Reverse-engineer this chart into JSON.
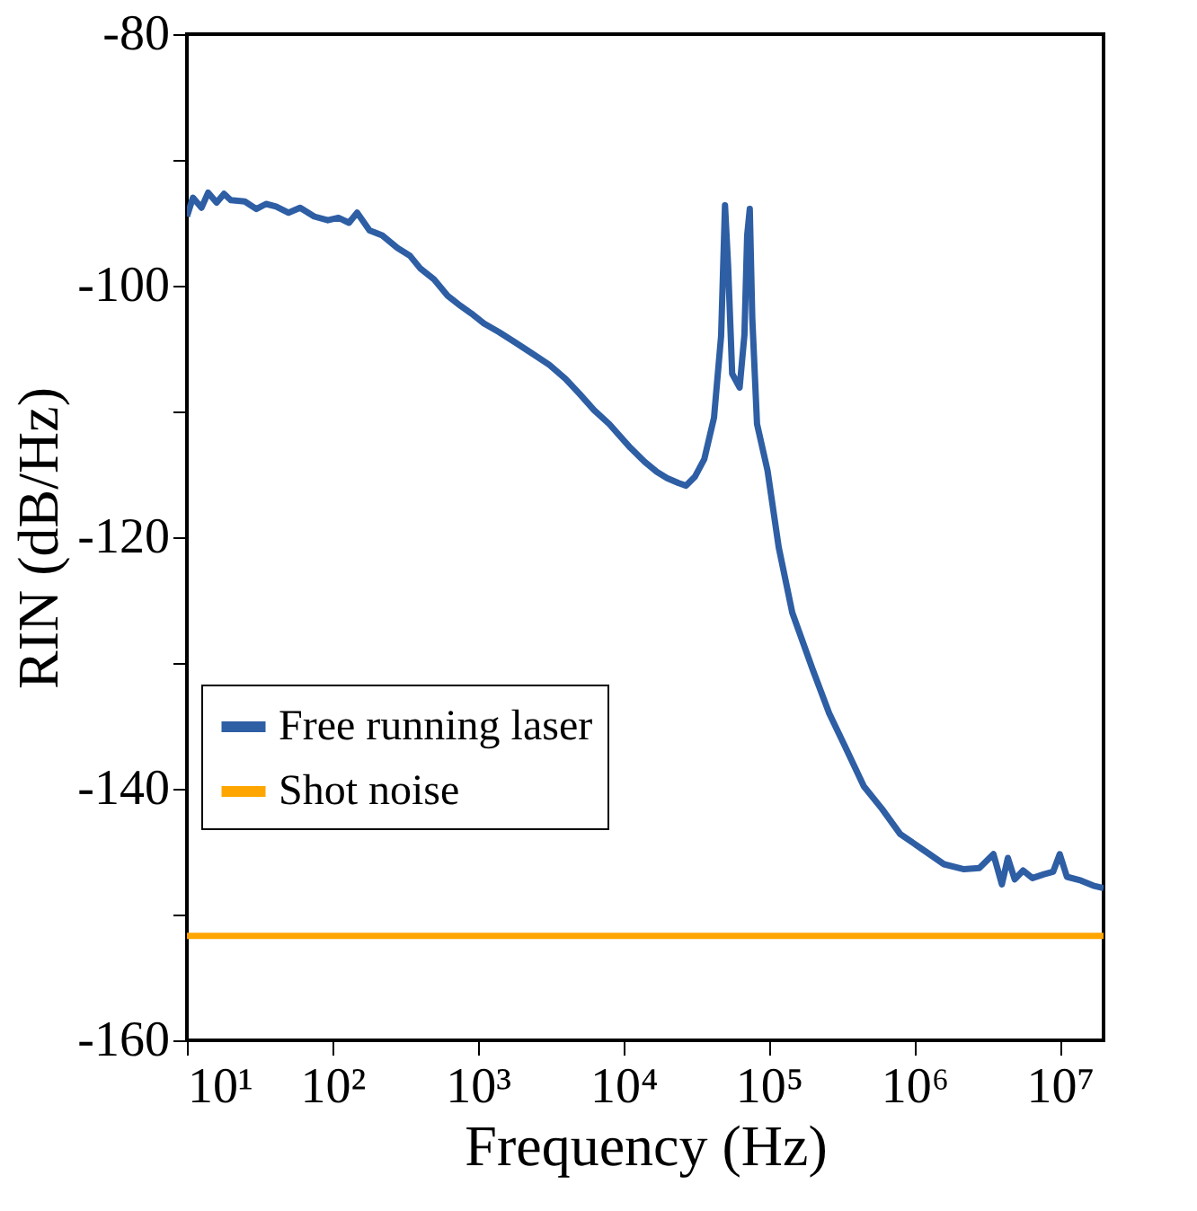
{
  "chart_data": {
    "type": "line",
    "xlabel": "Frequency (Hz)",
    "ylabel": "RIN (dB/Hz)",
    "log": "x",
    "grid": false,
    "legend": "bottom left",
    "line_style": "solid",
    "marker": "none",
    "xlim": [
      10,
      20000000
    ],
    "ylim": [
      -160,
      -80
    ],
    "xticks": [
      {
        "value": 10,
        "label": "10¹"
      },
      {
        "value": 100,
        "label": "10²"
      },
      {
        "value": 1000,
        "label": "10³"
      },
      {
        "value": 10000,
        "label": "10⁴"
      },
      {
        "value": 100000,
        "label": "10⁵"
      },
      {
        "value": 1000000,
        "label": "10⁶"
      },
      {
        "value": 10000000,
        "label": "10⁷"
      }
    ],
    "yticks": [
      -160,
      {
        "value": -150,
        "label": null
      },
      -140,
      {
        "value": -130,
        "label": null
      },
      -120,
      {
        "value": -110,
        "label": null
      },
      -100,
      {
        "value": -90,
        "label": null
      },
      -80
    ],
    "series": [
      {
        "name": "Free running laser",
        "color": "#2e5ea4",
        "x": [
          10,
          11,
          12.6,
          14,
          16,
          18,
          20,
          25,
          30,
          35,
          41,
          50,
          60,
          75,
          93,
          110,
          130,
          148,
          180,
          220,
          280,
          340,
          400,
          500,
          620,
          760,
          900,
          1100,
          1400,
          1800,
          2300,
          3100,
          4000,
          5000,
          6300,
          8000,
          11200,
          14000,
          17000,
          20000,
          24000,
          27000,
          31000,
          36000,
          42000,
          47000,
          50000,
          52500,
          56000,
          63000,
          68000,
          71000,
          74000,
          77000,
          83000,
          98000,
          117000,
          145000,
          200000,
          260000,
          330000,
          450000,
          600000,
          800000,
          1200000,
          1600000,
          2200000,
          2800000,
          3500000,
          4000000,
          4400000,
          4900000,
          5600000,
          6500000,
          7800000,
          9000000,
          10000000,
          11200000,
          14000000,
          17000000,
          20000000
        ],
        "values": [
          -94.5,
          -93.0,
          -93.8,
          -92.6,
          -93.4,
          -92.7,
          -93.2,
          -93.3,
          -93.9,
          -93.5,
          -93.7,
          -94.2,
          -93.8,
          -94.5,
          -94.8,
          -94.6,
          -95.0,
          -94.2,
          -95.6,
          -96.0,
          -97.0,
          -97.6,
          -98.6,
          -99.5,
          -100.8,
          -101.6,
          -102.2,
          -103.0,
          -103.7,
          -104.5,
          -105.3,
          -106.3,
          -107.4,
          -108.6,
          -109.9,
          -111.0,
          -112.9,
          -114.0,
          -114.8,
          -115.3,
          -115.7,
          -115.9,
          -115.2,
          -113.8,
          -110.5,
          -104.0,
          -93.6,
          -98.4,
          -107.0,
          -108.1,
          -103.9,
          -96.0,
          -93.9,
          -102.6,
          -111.0,
          -114.7,
          -120.8,
          -126.0,
          -130.5,
          -134.0,
          -136.5,
          -139.8,
          -141.6,
          -143.6,
          -145.0,
          -146.0,
          -146.4,
          -146.3,
          -145.2,
          -147.6,
          -145.5,
          -147.2,
          -146.5,
          -147.1,
          -146.8,
          -146.6,
          -145.2,
          -147.0,
          -147.3,
          -147.7,
          -147.9
        ]
      },
      {
        "name": "Shot noise",
        "color": "#ffa500",
        "x": [
          10,
          20000000
        ],
        "values": [
          -151.7,
          -151.7
        ]
      }
    ]
  }
}
